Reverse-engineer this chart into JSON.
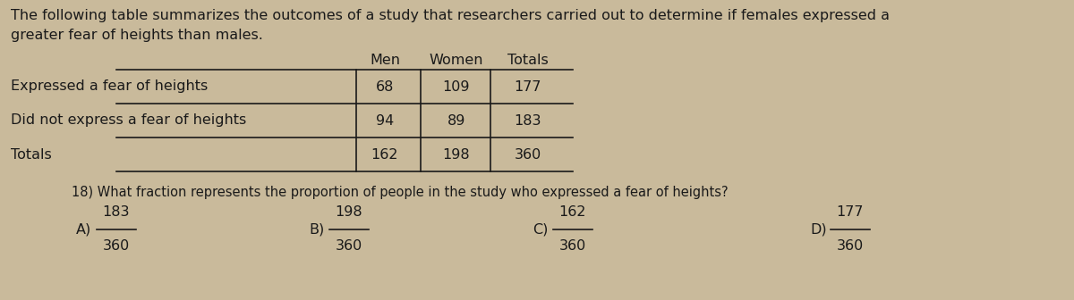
{
  "intro_text_line1": "The following table summarizes the outcomes of a study that researchers carried out to determine if females expressed a",
  "intro_text_line2": "greater fear of heights than males.",
  "col_headers": [
    "Men",
    "Women",
    "Totals"
  ],
  "row1_label": "Expressed a fear of heights",
  "row1_values": [
    "68",
    "109",
    "177"
  ],
  "row2_label": "Did not express a fear of heights",
  "row2_values": [
    "94",
    "89",
    "183"
  ],
  "row3_label": "Totals",
  "row3_values": [
    "162",
    "198",
    "360"
  ],
  "question": "18) What fraction represents the proportion of people in the study who expressed a fear of heights?",
  "choice_A_label": "A)",
  "choice_B_label": "B)",
  "choice_C_label": "C)",
  "choice_D_label": "D)",
  "choice_A_top": "183",
  "choice_A_bot": "360",
  "choice_B_top": "198",
  "choice_B_bot": "360",
  "choice_C_top": "162",
  "choice_C_bot": "360",
  "choice_D_top": "177",
  "choice_D_bot": "360",
  "bg_color": "#c9ba9b",
  "text_color": "#1a1a1a"
}
